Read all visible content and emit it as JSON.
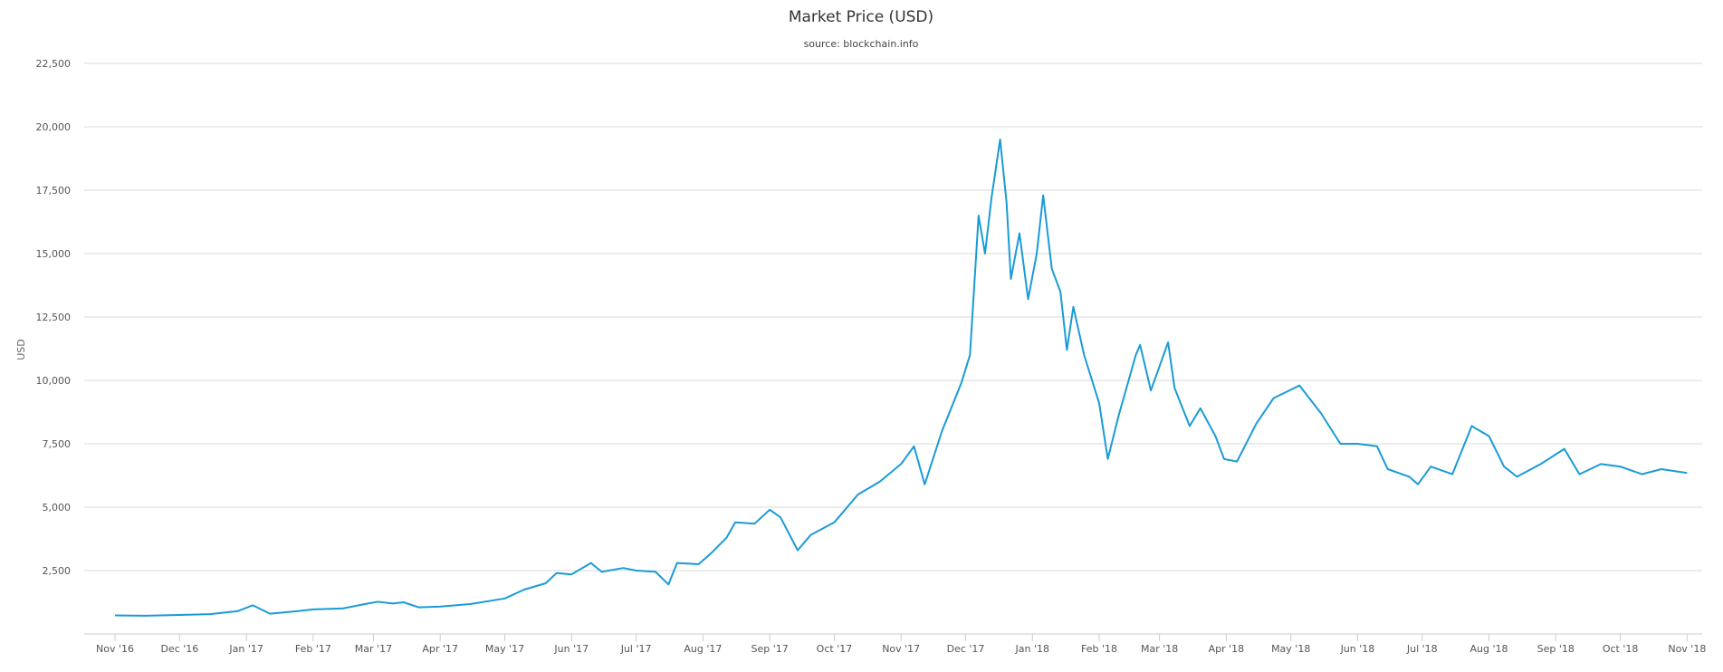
{
  "chart_data": {
    "type": "line",
    "title": "Market Price (USD)",
    "subtitle": "source: blockchain.info",
    "ylabel": "USD",
    "xlabel": "",
    "ylim": [
      0,
      22500
    ],
    "grid": true,
    "line_color": "#1a9bd7",
    "grid_color": "#d8d8d8",
    "y_ticks": [
      2500,
      5000,
      7500,
      10000,
      12500,
      15000,
      17500,
      20000,
      22500
    ],
    "y_tick_labels": [
      "2,500",
      "5,000",
      "7,500",
      "10,000",
      "12,500",
      "15,000",
      "17,500",
      "20,000",
      "22,500"
    ],
    "x_ticks": [
      "2016-11-01",
      "2016-12-01",
      "2017-01-01",
      "2017-02-01",
      "2017-03-01",
      "2017-04-01",
      "2017-05-01",
      "2017-06-01",
      "2017-07-01",
      "2017-08-01",
      "2017-09-01",
      "2017-10-01",
      "2017-11-01",
      "2017-12-01",
      "2018-01-01",
      "2018-02-01",
      "2018-03-01",
      "2018-04-01",
      "2018-05-01",
      "2018-06-01",
      "2018-07-01",
      "2018-08-01",
      "2018-09-01",
      "2018-10-01",
      "2018-11-01"
    ],
    "x_tick_labels": [
      "Nov '16",
      "Dec '16",
      "Jan '17",
      "Feb '17",
      "Mar '17",
      "Apr '17",
      "May '17",
      "Jun '17",
      "Jul '17",
      "Aug '17",
      "Sep '17",
      "Oct '17",
      "Nov '17",
      "Dec '17",
      "Jan '18",
      "Feb '18",
      "Mar '18",
      "Apr '18",
      "May '18",
      "Jun '18",
      "Jul '18",
      "Aug '18",
      "Sep '18",
      "Oct '18",
      "Nov '18"
    ],
    "series": [
      {
        "points": [
          [
            "2016-11-01",
            730
          ],
          [
            "2016-11-15",
            720
          ],
          [
            "2016-12-01",
            750
          ],
          [
            "2016-12-15",
            780
          ],
          [
            "2016-12-28",
            900
          ],
          [
            "2017-01-04",
            1130
          ],
          [
            "2017-01-12",
            800
          ],
          [
            "2017-01-25",
            900
          ],
          [
            "2017-02-01",
            970
          ],
          [
            "2017-02-15",
            1010
          ],
          [
            "2017-02-25",
            1180
          ],
          [
            "2017-03-03",
            1270
          ],
          [
            "2017-03-10",
            1200
          ],
          [
            "2017-03-15",
            1250
          ],
          [
            "2017-03-22",
            1050
          ],
          [
            "2017-04-01",
            1080
          ],
          [
            "2017-04-15",
            1180
          ],
          [
            "2017-05-01",
            1400
          ],
          [
            "2017-05-10",
            1750
          ],
          [
            "2017-05-20",
            2000
          ],
          [
            "2017-05-25",
            2400
          ],
          [
            "2017-06-01",
            2350
          ],
          [
            "2017-06-10",
            2800
          ],
          [
            "2017-06-15",
            2450
          ],
          [
            "2017-06-25",
            2600
          ],
          [
            "2017-07-01",
            2500
          ],
          [
            "2017-07-10",
            2450
          ],
          [
            "2017-07-16",
            1950
          ],
          [
            "2017-07-20",
            2800
          ],
          [
            "2017-07-30",
            2750
          ],
          [
            "2017-08-05",
            3200
          ],
          [
            "2017-08-12",
            3800
          ],
          [
            "2017-08-16",
            4400
          ],
          [
            "2017-08-25",
            4350
          ],
          [
            "2017-09-01",
            4900
          ],
          [
            "2017-09-06",
            4600
          ],
          [
            "2017-09-14",
            3300
          ],
          [
            "2017-09-20",
            3900
          ],
          [
            "2017-10-01",
            4400
          ],
          [
            "2017-10-12",
            5500
          ],
          [
            "2017-10-22",
            6000
          ],
          [
            "2017-11-01",
            6700
          ],
          [
            "2017-11-07",
            7400
          ],
          [
            "2017-11-12",
            5900
          ],
          [
            "2017-11-20",
            8000
          ],
          [
            "2017-11-29",
            9900
          ],
          [
            "2017-12-03",
            11000
          ],
          [
            "2017-12-07",
            16500
          ],
          [
            "2017-12-10",
            15000
          ],
          [
            "2017-12-13",
            17200
          ],
          [
            "2017-12-17",
            19500
          ],
          [
            "2017-12-20",
            17000
          ],
          [
            "2017-12-22",
            14000
          ],
          [
            "2017-12-26",
            15800
          ],
          [
            "2017-12-30",
            13200
          ],
          [
            "2018-01-03",
            15000
          ],
          [
            "2018-01-06",
            17300
          ],
          [
            "2018-01-10",
            14400
          ],
          [
            "2018-01-14",
            13500
          ],
          [
            "2018-01-17",
            11200
          ],
          [
            "2018-01-20",
            12900
          ],
          [
            "2018-01-25",
            11000
          ],
          [
            "2018-02-01",
            9100
          ],
          [
            "2018-02-05",
            6900
          ],
          [
            "2018-02-10",
            8600
          ],
          [
            "2018-02-18",
            11000
          ],
          [
            "2018-02-20",
            11400
          ],
          [
            "2018-02-25",
            9600
          ],
          [
            "2018-03-05",
            11500
          ],
          [
            "2018-03-08",
            9700
          ],
          [
            "2018-03-15",
            8200
          ],
          [
            "2018-03-20",
            8900
          ],
          [
            "2018-03-27",
            7800
          ],
          [
            "2018-03-31",
            6900
          ],
          [
            "2018-04-06",
            6800
          ],
          [
            "2018-04-15",
            8300
          ],
          [
            "2018-04-23",
            9300
          ],
          [
            "2018-05-05",
            9800
          ],
          [
            "2018-05-15",
            8700
          ],
          [
            "2018-05-24",
            7500
          ],
          [
            "2018-06-01",
            7500
          ],
          [
            "2018-06-10",
            7400
          ],
          [
            "2018-06-15",
            6500
          ],
          [
            "2018-06-25",
            6200
          ],
          [
            "2018-06-29",
            5900
          ],
          [
            "2018-07-05",
            6600
          ],
          [
            "2018-07-15",
            6300
          ],
          [
            "2018-07-24",
            8200
          ],
          [
            "2018-08-01",
            7800
          ],
          [
            "2018-08-08",
            6600
          ],
          [
            "2018-08-14",
            6200
          ],
          [
            "2018-08-25",
            6700
          ],
          [
            "2018-09-05",
            7300
          ],
          [
            "2018-09-12",
            6300
          ],
          [
            "2018-09-22",
            6700
          ],
          [
            "2018-10-01",
            6600
          ],
          [
            "2018-10-11",
            6300
          ],
          [
            "2018-10-20",
            6500
          ],
          [
            "2018-11-01",
            6350
          ]
        ]
      }
    ]
  }
}
